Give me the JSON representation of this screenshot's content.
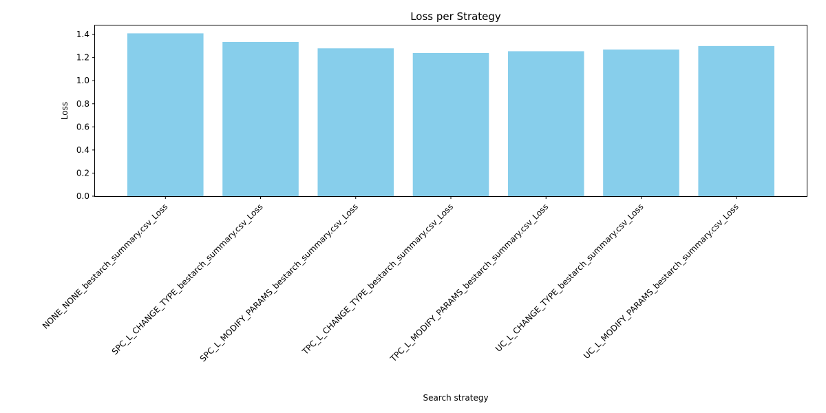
{
  "chart_data": {
    "type": "bar",
    "title": "Loss per Strategy",
    "xlabel": "Search strategy",
    "ylabel": "Loss",
    "categories": [
      "NONE_NONE_bestarch_summary.csv_Loss",
      "SPC_L_CHANGE_TYPE_bestarch_summary.csv_Loss",
      "SPC_L_MODIFY_PARAMS_bestarch_summary.csv_Loss",
      "TPC_L_CHANGE_TYPE_bestarch_summary.csv_Loss",
      "TPC_L_MODIFY_PARAMS_bestarch_summary.csv_Loss",
      "UC_L_CHANGE_TYPE_bestarch_summary.csv_Loss",
      "UC_L_MODIFY_PARAMS_bestarch_summary.csv_Loss"
    ],
    "values": [
      1.41,
      1.335,
      1.28,
      1.24,
      1.255,
      1.27,
      1.3
    ],
    "ylim": [
      0,
      1.484
    ],
    "yticks": [
      "0.0",
      "0.2",
      "0.4",
      "0.6",
      "0.8",
      "1.0",
      "1.2",
      "1.4"
    ],
    "bar_color": "#87CEEB",
    "grid": false,
    "legend": "none"
  }
}
